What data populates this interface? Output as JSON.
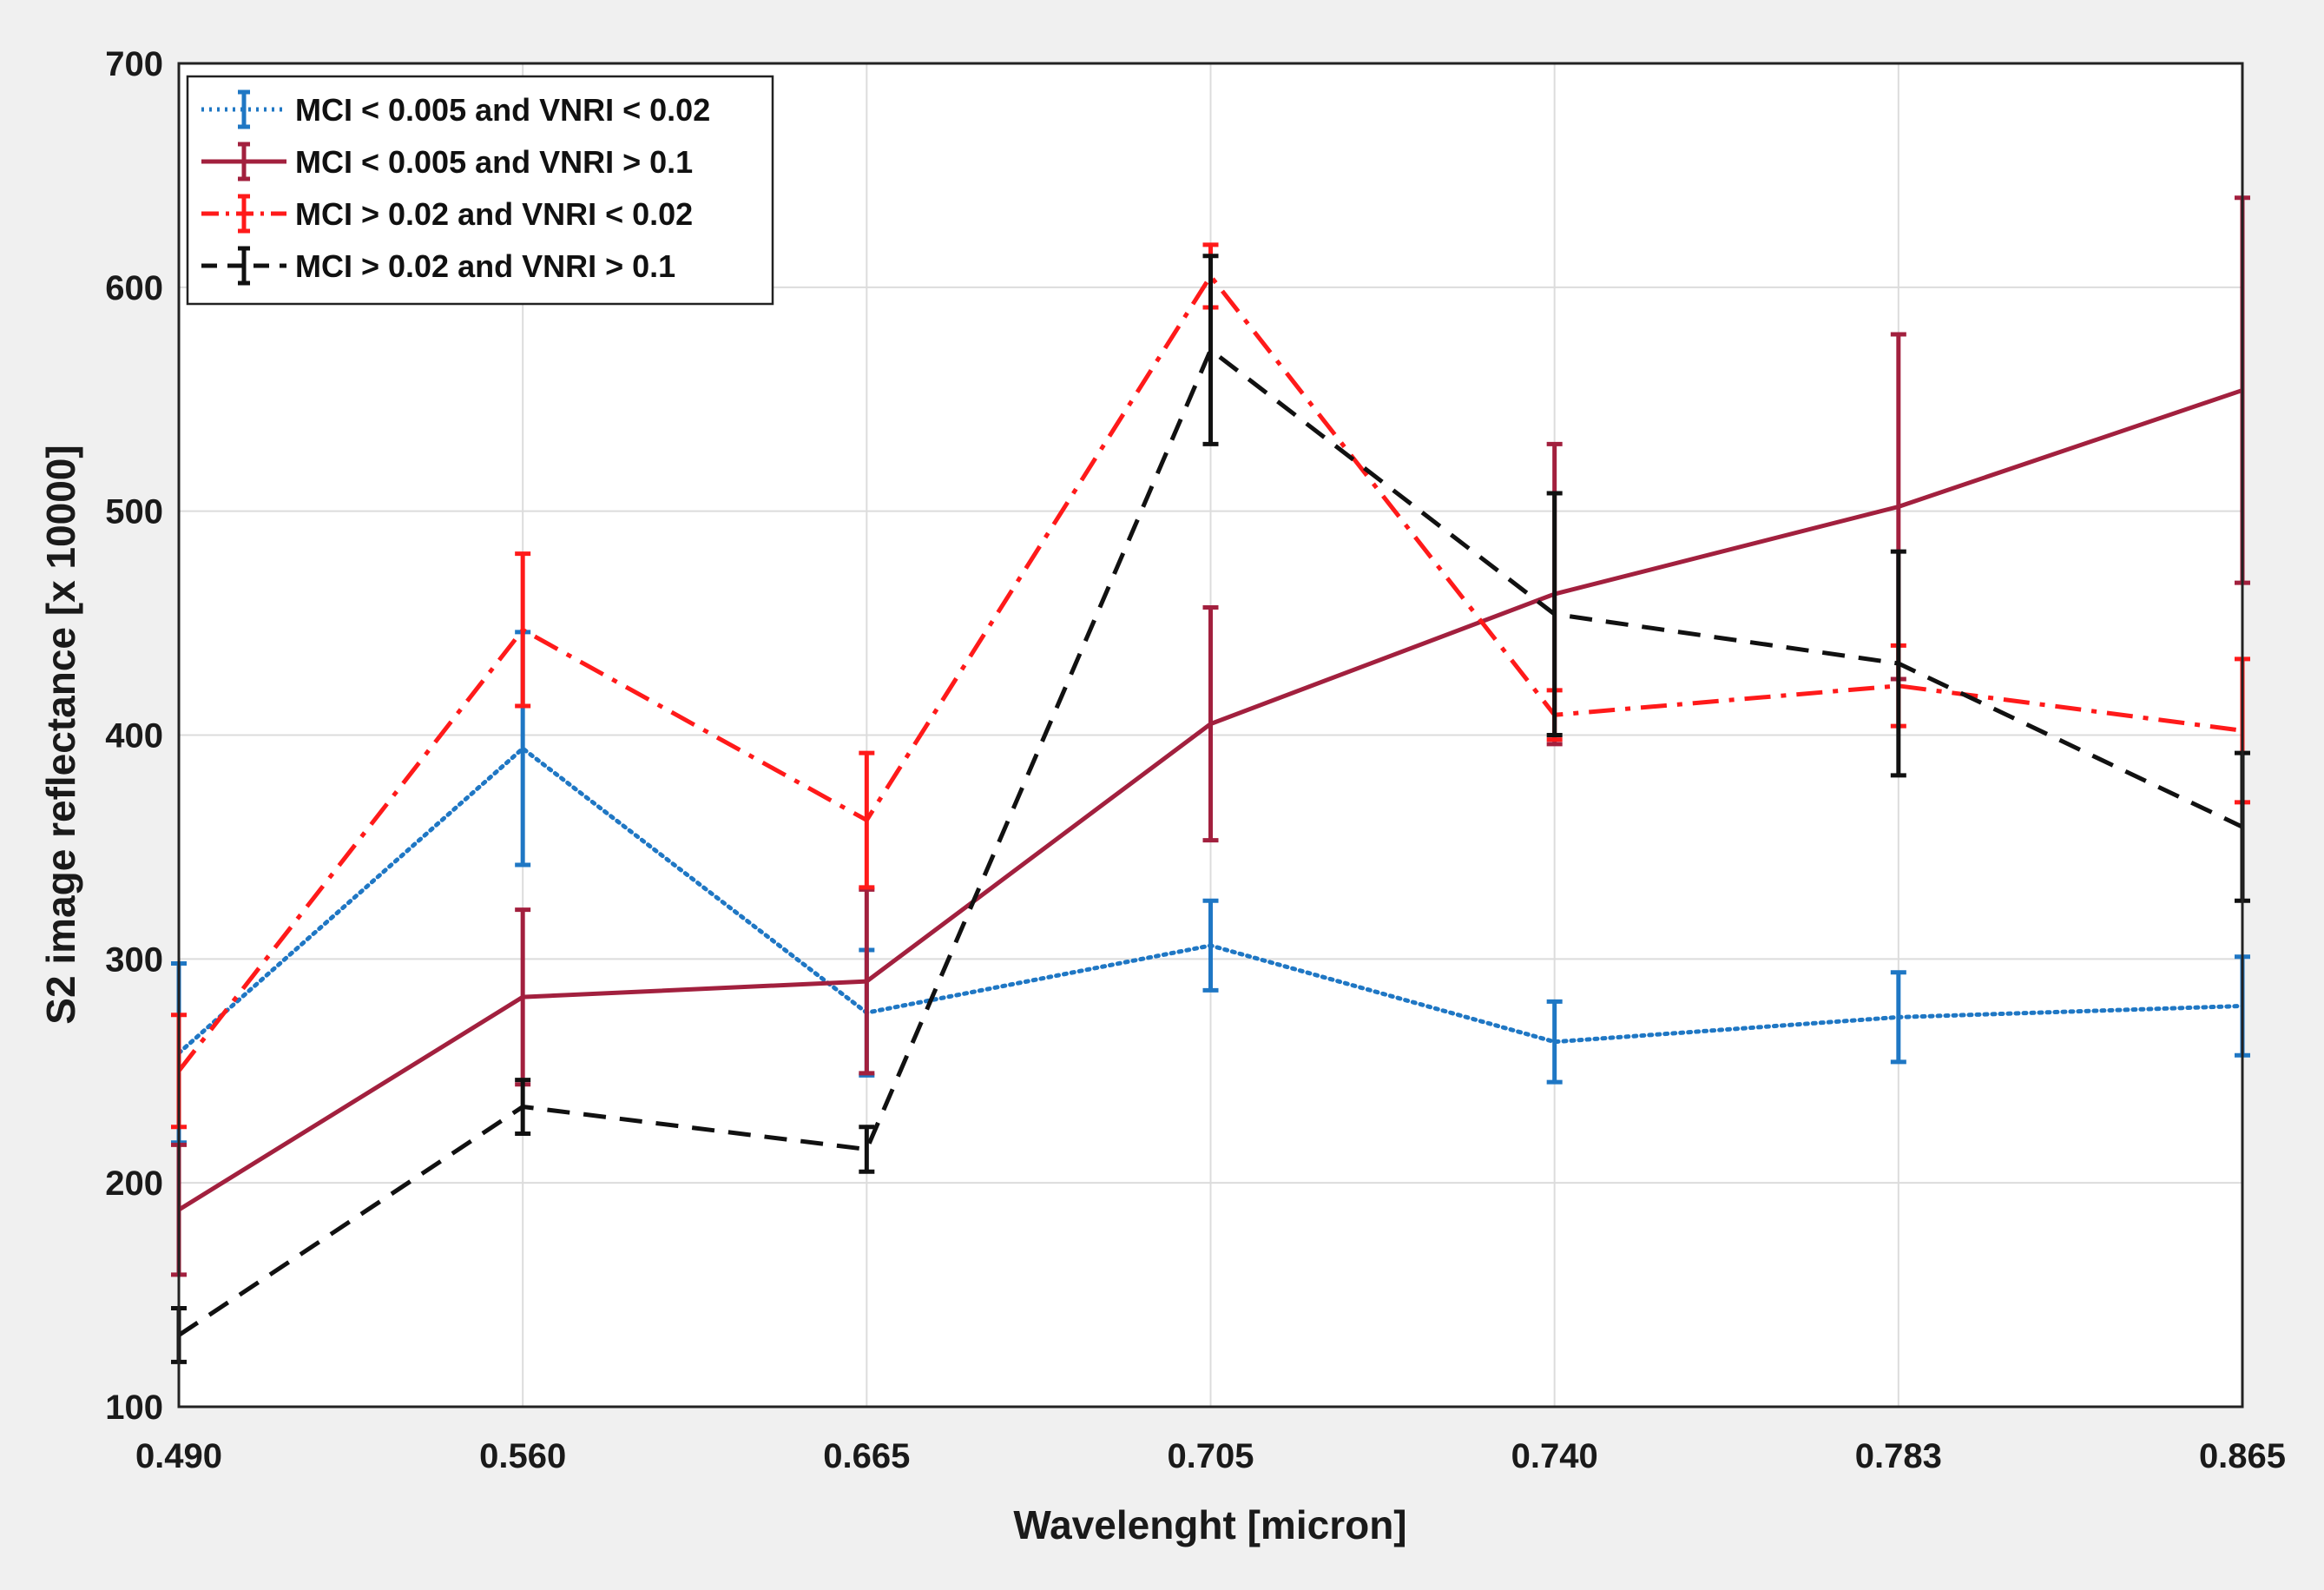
{
  "chart_data": {
    "type": "line",
    "title": "",
    "xlabel": "Wavelenght [micron]",
    "ylabel": "S2 image reflectance [x 10000]",
    "categories": [
      "0.490",
      "0.560",
      "0.665",
      "0.705",
      "0.740",
      "0.783",
      "0.865"
    ],
    "yticks": [
      "100",
      "200",
      "300",
      "400",
      "500",
      "600",
      "700"
    ],
    "ylim": [
      100,
      700
    ],
    "grid": true,
    "legend_location": "top-left",
    "series": [
      {
        "name": "MCI < 0.005 and VNRI < 0.02",
        "color": "#1f77c4",
        "style": "dotted",
        "values": [
          258,
          394,
          276,
          306,
          263,
          274,
          279
        ],
        "errors": [
          40,
          52,
          28,
          20,
          18,
          20,
          22
        ]
      },
      {
        "name": "MCI < 0.005 and VNRI > 0.1",
        "color": "#a2203e",
        "style": "solid",
        "values": [
          188,
          283,
          290,
          405,
          463,
          502,
          554
        ],
        "errors": [
          29,
          39,
          41,
          52,
          67,
          77,
          86
        ]
      },
      {
        "name": "MCI > 0.02 and VNRI < 0.02",
        "color": "#ff1a1a",
        "style": "dashdot",
        "values": [
          250,
          447,
          362,
          605,
          409,
          422,
          402
        ],
        "errors": [
          25,
          34,
          30,
          14,
          11,
          18,
          32
        ]
      },
      {
        "name": "MCI > 0.02 and VNRI > 0.1",
        "color": "#111111",
        "style": "dashed",
        "values": [
          132,
          234,
          215,
          572,
          454,
          432,
          359
        ],
        "errors": [
          12,
          12,
          10,
          42,
          54,
          50,
          33
        ]
      }
    ]
  }
}
